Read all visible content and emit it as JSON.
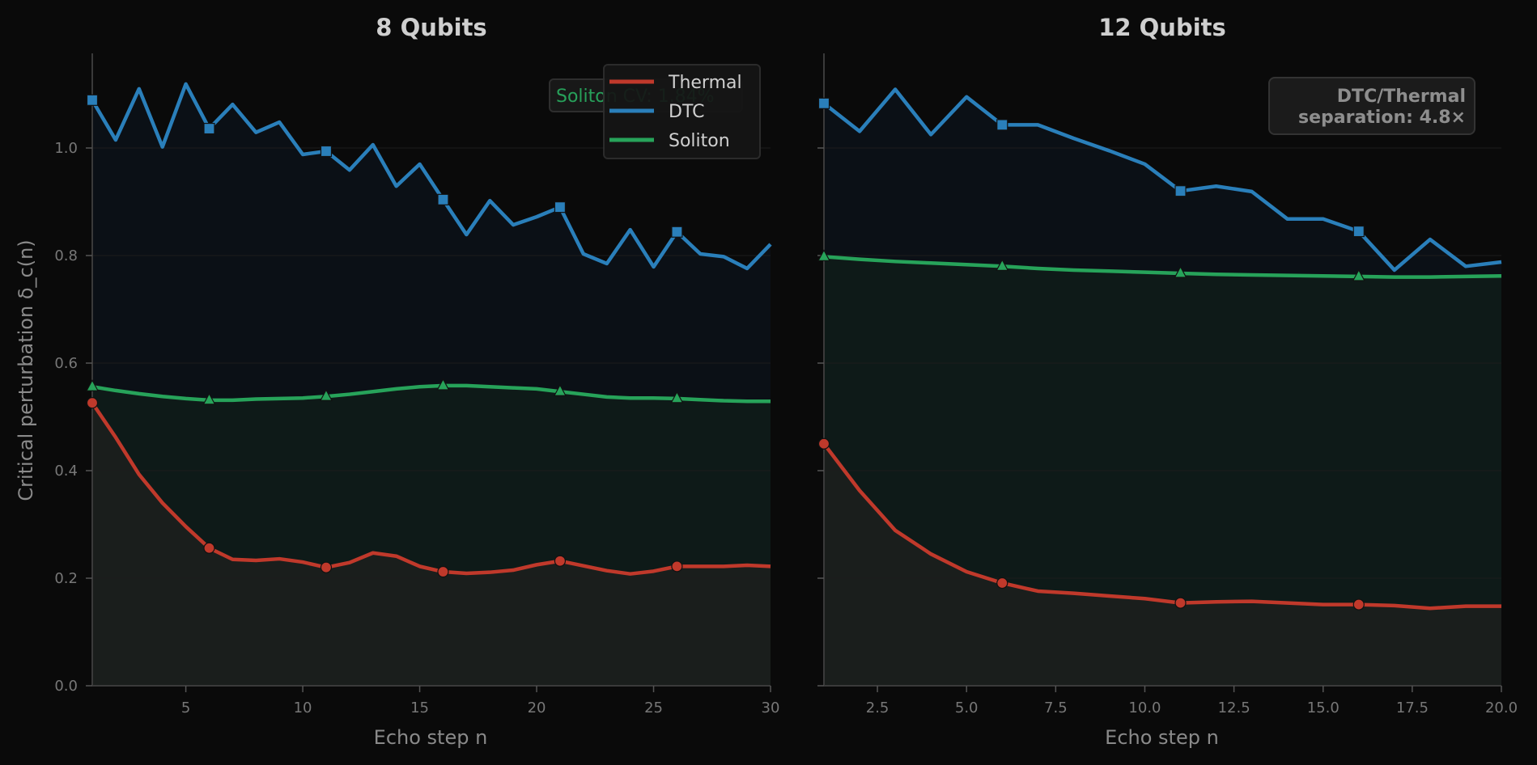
{
  "chart_data": [
    {
      "type": "line",
      "title": "8 Qubits",
      "xlabel": "Echo step n",
      "ylabel": "Critical perturbation  δ_c(n)",
      "xlim": [
        1,
        30
      ],
      "ylim": [
        0.0,
        1.175
      ],
      "xticks": [
        5,
        10,
        15,
        20,
        25,
        30
      ],
      "xtick_labels": [
        "5",
        "10",
        "15",
        "20",
        "25",
        "30"
      ],
      "yticks": [
        0.0,
        0.2,
        0.4,
        0.6,
        0.8,
        1.0
      ],
      "ytick_labels": [
        "0.0",
        "0.2",
        "0.4",
        "0.6",
        "0.8",
        "1.0"
      ],
      "grid": true,
      "legend_position": "upper right",
      "legend": [
        "Thermal",
        "DTC",
        "Soliton"
      ],
      "annotation": "Soliton CV: 1.84%",
      "marker_every": 5,
      "x": [
        1,
        2,
        3,
        4,
        5,
        6,
        7,
        8,
        9,
        10,
        11,
        12,
        13,
        14,
        15,
        16,
        17,
        18,
        19,
        20,
        21,
        22,
        23,
        24,
        25,
        26,
        27,
        28,
        29,
        30
      ],
      "series": [
        {
          "name": "Thermal",
          "color": "#c0392b",
          "marker": "circle",
          "values": [
            0.526,
            0.462,
            0.393,
            0.34,
            0.296,
            0.256,
            0.235,
            0.233,
            0.236,
            0.23,
            0.22,
            0.229,
            0.247,
            0.241,
            0.222,
            0.212,
            0.209,
            0.211,
            0.215,
            0.225,
            0.232,
            0.223,
            0.214,
            0.208,
            0.213,
            0.222,
            0.222,
            0.222,
            0.224,
            0.222
          ]
        },
        {
          "name": "DTC",
          "color": "#2a7fba",
          "marker": "square",
          "values": [
            1.089,
            1.015,
            1.11,
            1.002,
            1.119,
            1.036,
            1.081,
            1.029,
            1.048,
            0.988,
            0.994,
            0.959,
            1.006,
            0.929,
            0.97,
            0.904,
            0.839,
            0.902,
            0.857,
            0.872,
            0.89,
            0.803,
            0.785,
            0.848,
            0.779,
            0.844,
            0.803,
            0.798,
            0.776,
            0.821
          ]
        },
        {
          "name": "Soliton",
          "color": "#27a35a",
          "marker": "triangle",
          "values": [
            0.556,
            0.549,
            0.543,
            0.538,
            0.534,
            0.531,
            0.531,
            0.533,
            0.534,
            0.535,
            0.538,
            0.542,
            0.547,
            0.552,
            0.556,
            0.558,
            0.558,
            0.556,
            0.554,
            0.552,
            0.547,
            0.542,
            0.537,
            0.535,
            0.535,
            0.534,
            0.532,
            0.53,
            0.529,
            0.529
          ]
        }
      ]
    },
    {
      "type": "line",
      "title": "12 Qubits",
      "xlabel": "Echo step n",
      "ylabel": "",
      "xlim": [
        1,
        20
      ],
      "ylim": [
        0.0,
        1.175
      ],
      "xticks": [
        2.5,
        5.0,
        7.5,
        10.0,
        12.5,
        15.0,
        17.5,
        20.0
      ],
      "xtick_labels": [
        "2.5",
        "5.0",
        "7.5",
        "10.0",
        "12.5",
        "15.0",
        "17.5",
        "20.0"
      ],
      "yticks": [
        0.0,
        0.2,
        0.4,
        0.6,
        0.8,
        1.0
      ],
      "grid": true,
      "annotation": "DTC/Thermal\nseparation: 4.8×",
      "marker_every": 5,
      "x": [
        1,
        2,
        3,
        4,
        5,
        6,
        7,
        8,
        9,
        10,
        11,
        12,
        13,
        14,
        15,
        16,
        17,
        18,
        19,
        20
      ],
      "series": [
        {
          "name": "Thermal",
          "color": "#c0392b",
          "marker": "circle",
          "values": [
            0.45,
            0.363,
            0.289,
            0.245,
            0.212,
            0.191,
            0.176,
            0.172,
            0.167,
            0.162,
            0.154,
            0.156,
            0.157,
            0.154,
            0.151,
            0.151,
            0.149,
            0.144,
            0.148,
            0.148
          ]
        },
        {
          "name": "DTC",
          "color": "#2a7fba",
          "marker": "square",
          "values": [
            1.083,
            1.031,
            1.109,
            1.025,
            1.095,
            1.043,
            1.043,
            1.018,
            0.995,
            0.97,
            0.92,
            0.929,
            0.919,
            0.868,
            0.868,
            0.845,
            0.773,
            0.83,
            0.78,
            0.788
          ]
        },
        {
          "name": "Soliton",
          "color": "#27a35a",
          "marker": "triangle",
          "values": [
            0.798,
            0.793,
            0.789,
            0.786,
            0.783,
            0.78,
            0.776,
            0.773,
            0.771,
            0.769,
            0.767,
            0.765,
            0.764,
            0.763,
            0.762,
            0.761,
            0.76,
            0.76,
            0.761,
            0.762
          ]
        }
      ]
    }
  ],
  "panels": [
    {
      "title": "8 Qubits",
      "xlabel": "Echo step n",
      "ylabel": "Critical perturbation  δ_c(n)",
      "annotation_lines": [
        "Soliton CV: 1.84%"
      ]
    },
    {
      "title": "12 Qubits",
      "xlabel": "Echo step n",
      "ylabel": "",
      "annotation_lines": [
        "DTC/Thermal",
        "separation: 4.8×"
      ]
    }
  ],
  "legend": {
    "items": [
      {
        "label": "Thermal",
        "color": "#c0392b"
      },
      {
        "label": "DTC",
        "color": "#2a7fba"
      },
      {
        "label": "Soliton",
        "color": "#27a35a"
      }
    ]
  },
  "colors": {
    "background": "#0a0a0a",
    "text": "#cfcfcf",
    "tick": "#777777",
    "spine": "#3a3a3a",
    "grid": "#1c1c1c"
  }
}
